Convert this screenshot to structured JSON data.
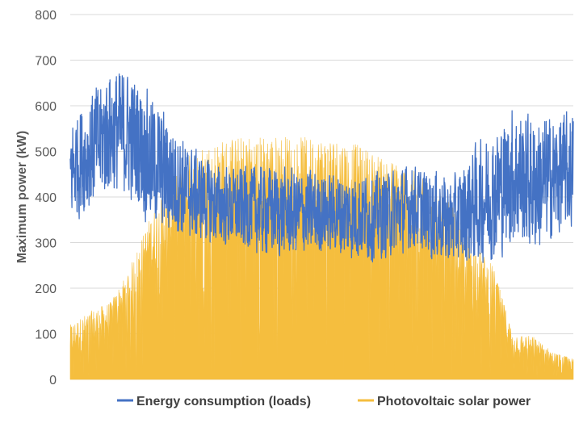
{
  "chart_data": {
    "type": "line",
    "ylabel": "Maximum power (kW)",
    "xlabel": "",
    "ylim": [
      0,
      800
    ],
    "yticks": [
      0,
      100,
      200,
      300,
      400,
      500,
      600,
      700,
      800
    ],
    "grid": true,
    "legend": "bottom",
    "series": [
      {
        "name": "Energy consumption (loads)",
        "color": "#4472C4",
        "style": "line",
        "envelope": {
          "x": [
            0,
            4,
            8,
            12,
            16,
            20,
            24,
            28,
            32,
            36,
            40,
            44,
            48,
            52,
            56,
            60,
            64,
            68,
            72,
            76,
            80,
            84,
            88,
            92,
            96,
            100
          ],
          "low": [
            330,
            360,
            390,
            380,
            320,
            300,
            300,
            290,
            280,
            270,
            260,
            260,
            260,
            270,
            250,
            250,
            260,
            280,
            250,
            240,
            240,
            250,
            280,
            260,
            290,
            320
          ],
          "high": [
            590,
            640,
            700,
            690,
            640,
            580,
            520,
            490,
            470,
            480,
            480,
            470,
            470,
            460,
            470,
            460,
            470,
            480,
            470,
            450,
            520,
            560,
            620,
            600,
            590,
            600
          ]
        }
      },
      {
        "name": "Photovoltaic solar power",
        "color": "#F5BE3E",
        "style": "filled-bars",
        "envelope": {
          "x": [
            0,
            4,
            8,
            12,
            16,
            20,
            24,
            28,
            32,
            36,
            40,
            44,
            48,
            52,
            56,
            60,
            64,
            68,
            72,
            76,
            80,
            84,
            88,
            92,
            96,
            100
          ],
          "low": [
            10,
            20,
            40,
            80,
            120,
            170,
            200,
            230,
            240,
            240,
            240,
            240,
            240,
            240,
            240,
            230,
            220,
            200,
            170,
            140,
            90,
            60,
            30,
            15,
            10,
            5
          ],
          "high": [
            120,
            150,
            170,
            250,
            360,
            430,
            500,
            520,
            530,
            535,
            535,
            535,
            530,
            530,
            520,
            500,
            480,
            460,
            430,
            380,
            300,
            250,
            100,
            95,
            60,
            45
          ]
        }
      }
    ]
  }
}
